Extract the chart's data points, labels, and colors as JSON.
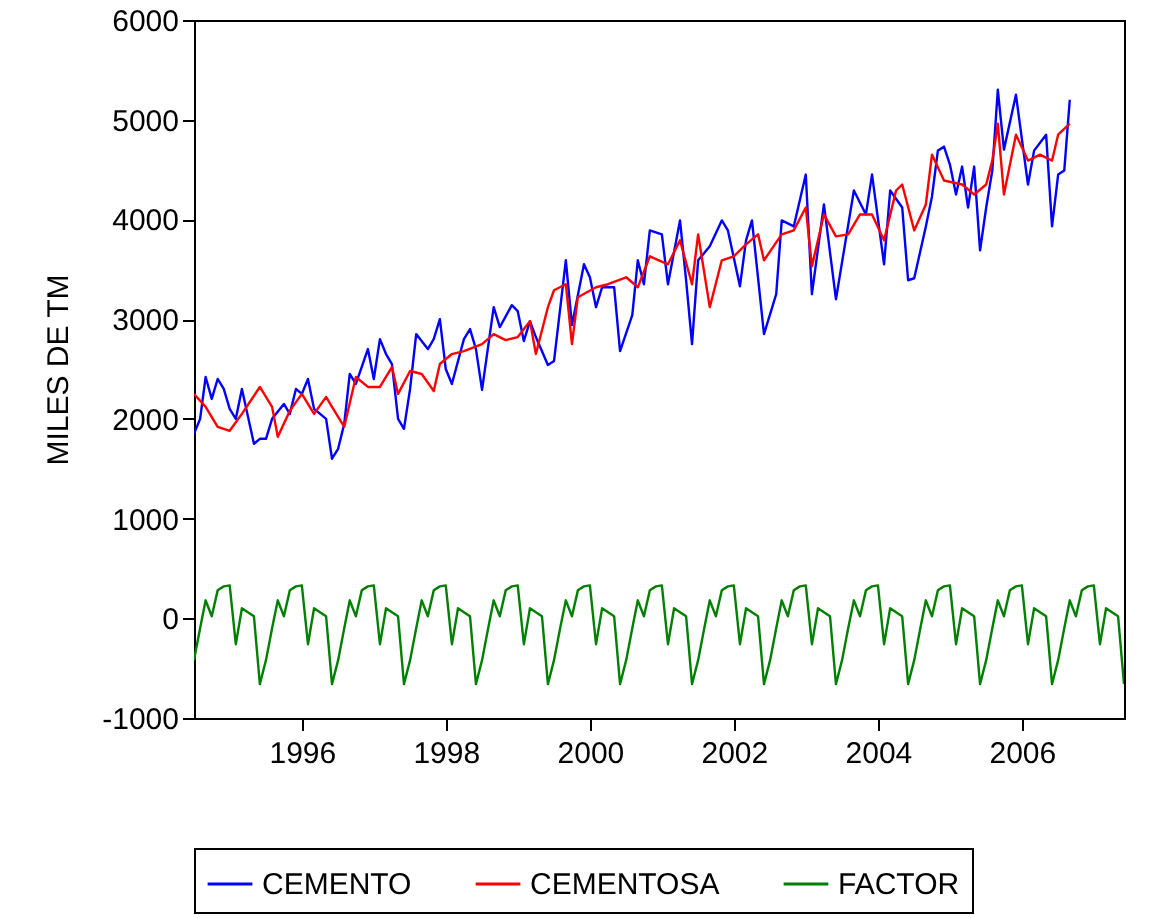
{
  "chart_data": {
    "type": "line",
    "ylabel": "MILES  DE  TM",
    "x": [
      "1995-01",
      "1995-02",
      "1995-03",
      "1995-04",
      "1995-05",
      "1995-06",
      "1995-07",
      "1995-08",
      "1995-09",
      "1995-10",
      "1995-11",
      "1995-12",
      "1996-01",
      "1996-02",
      "1996-03",
      "1996-04",
      "1996-05",
      "1996-06",
      "1996-07",
      "1996-08",
      "1996-09",
      "1996-10",
      "1996-11",
      "1996-12",
      "1997-01",
      "1997-02",
      "1997-03",
      "1997-04",
      "1997-05",
      "1997-06",
      "1997-07",
      "1997-08",
      "1997-09",
      "1997-10",
      "1997-11",
      "1997-12",
      "1998-01",
      "1998-02",
      "1998-03",
      "1998-04",
      "1998-05",
      "1998-06",
      "1998-07",
      "1998-08",
      "1998-09",
      "1998-10",
      "1998-11",
      "1998-12",
      "1999-01",
      "1999-02",
      "1999-03",
      "1999-04",
      "1999-05",
      "1999-06",
      "1999-07",
      "1999-08",
      "1999-09",
      "1999-10",
      "1999-11",
      "1999-12",
      "2000-01",
      "2000-02",
      "2000-03",
      "2000-04",
      "2000-05",
      "2000-06",
      "2000-07",
      "2000-08",
      "2000-09",
      "2000-10",
      "2000-11",
      "2000-12",
      "2001-01",
      "2001-02",
      "2001-03",
      "2001-04",
      "2001-05",
      "2001-06",
      "2001-07",
      "2001-08",
      "2001-09",
      "2001-10",
      "2001-11",
      "2001-12",
      "2002-01",
      "2002-02",
      "2002-03",
      "2002-04",
      "2002-05",
      "2002-06",
      "2002-07",
      "2002-08",
      "2002-09",
      "2002-10",
      "2002-11",
      "2002-12",
      "2003-01",
      "2003-02",
      "2003-03",
      "2003-04",
      "2003-05",
      "2003-06",
      "2003-07",
      "2003-08",
      "2003-09",
      "2003-10",
      "2003-11",
      "2003-12",
      "2004-01",
      "2004-02",
      "2004-03",
      "2004-04",
      "2004-05",
      "2004-06",
      "2004-07",
      "2004-08",
      "2004-09",
      "2004-10",
      "2004-11",
      "2004-12",
      "2005-01",
      "2005-02",
      "2005-03",
      "2005-04",
      "2005-05",
      "2005-06",
      "2005-07",
      "2005-08",
      "2005-09",
      "2005-10",
      "2005-11",
      "2005-12",
      "2006-01",
      "2006-02",
      "2006-03",
      "2006-04",
      "2006-05",
      "2006-06",
      "2006-07",
      "2006-08",
      "2006-09",
      "2006-10",
      "2006-11",
      "2006-12",
      "2007-01",
      "2007-02",
      "2007-03",
      "2007-04",
      "2007-05",
      "2007-06",
      "2007-07",
      "2007-08",
      "2007-09",
      "2007-10",
      "2007-11",
      "2007-12"
    ],
    "series": [
      {
        "name": "CEMENTO",
        "color": "#0000ff",
        "x": [
          "1995-01",
          "1995-02",
          "1995-03",
          "1995-04",
          "1995-05",
          "1995-06",
          "1995-07",
          "1995-08",
          "1995-09",
          "1995-11",
          "1995-12",
          "1996-01",
          "1996-02",
          "1996-04",
          "1996-05",
          "1996-06",
          "1996-07",
          "1996-08",
          "1996-09",
          "1996-11",
          "1996-12",
          "1997-01",
          "1997-02",
          "1997-03",
          "1997-04",
          "1997-06",
          "1997-07",
          "1997-08",
          "1997-09",
          "1997-10",
          "1997-11",
          "1997-12",
          "1998-01",
          "1998-02",
          "1998-04",
          "1998-05",
          "1998-06",
          "1998-07",
          "1998-08",
          "1998-10",
          "1998-11",
          "1998-12",
          "1999-01",
          "1999-03",
          "1999-04",
          "1999-06",
          "1999-07",
          "1999-08",
          "1999-09",
          "1999-10",
          "1999-12",
          "2000-01",
          "2000-03",
          "2000-04",
          "2000-06",
          "2000-07",
          "2000-08",
          "2000-09",
          "2000-11",
          "2000-12",
          "2001-02",
          "2001-03",
          "2001-04",
          "2001-05",
          "2001-07",
          "2001-08",
          "2001-10",
          "2001-11",
          "2001-12",
          "2002-01",
          "2002-03",
          "2002-05",
          "2002-06",
          "2002-08",
          "2002-09",
          "2002-10",
          "2002-12",
          "2003-02",
          "2003-03",
          "2003-05",
          "2003-07",
          "2003-08",
          "2003-10",
          "2003-12",
          "2004-03",
          "2004-05",
          "2004-06",
          "2004-08",
          "2004-09",
          "2004-11",
          "2004-12",
          "2005-01",
          "2005-03",
          "2005-04",
          "2005-05",
          "2005-06",
          "2005-07",
          "2005-08",
          "2005-09",
          "2005-10",
          "2005-11",
          "2005-12",
          "2006-01",
          "2006-02",
          "2006-03",
          "2006-04",
          "2006-06",
          "2006-08",
          "2006-09",
          "2006-11",
          "2006-12",
          "2007-01",
          "2007-02",
          "2007-03"
        ],
        "values": [
          1850,
          2000,
          2420,
          2200,
          2400,
          2300,
          2100,
          2000,
          2300,
          1750,
          1800,
          1800,
          2000,
          2150,
          2050,
          2300,
          2250,
          2400,
          2100,
          2000,
          1600,
          1700,
          1950,
          2450,
          2350,
          2700,
          2400,
          2800,
          2650,
          2550,
          2000,
          1900,
          2300,
          2850,
          2700,
          2800,
          3000,
          2500,
          2350,
          2800,
          2900,
          2700,
          2290,
          3120,
          2920,
          3140,
          3080,
          2780,
          2980,
          2820,
          2540,
          2580,
          3590,
          2940,
          3550,
          3420,
          3120,
          3320,
          3320,
          2680,
          3040,
          3590,
          3350,
          3890,
          3850,
          3350,
          3990,
          3390,
          2750,
          3590,
          3730,
          3990,
          3890,
          3330,
          3790,
          3990,
          2850,
          3250,
          3990,
          3930,
          4450,
          3250,
          4150,
          3200,
          4290,
          4050,
          4450,
          3550,
          4290,
          4120,
          3390,
          3410,
          3930,
          4230,
          4690,
          4730,
          4550,
          4250,
          4530,
          4120,
          4530,
          3690,
          4120,
          4490,
          5300,
          4700,
          5250,
          4350,
          4690,
          4850,
          3930,
          4450,
          4490,
          5200
        ]
      },
      {
        "name": "CEMENTOSA",
        "color": "#ff0000",
        "x": [
          "1995-01",
          "1995-03",
          "1995-05",
          "1995-07",
          "1995-09",
          "1995-12",
          "1996-02",
          "1996-03",
          "1996-05",
          "1996-07",
          "1996-09",
          "1996-11",
          "1996-12",
          "1997-02",
          "1997-04",
          "1997-06",
          "1997-08",
          "1997-10",
          "1997-11",
          "1998-01",
          "1998-03",
          "1998-05",
          "1998-06",
          "1998-08",
          "1998-10",
          "1999-01",
          "1999-03",
          "1999-05",
          "1999-07",
          "1999-09",
          "1999-10",
          "1999-12",
          "2000-01",
          "2000-03",
          "2000-04",
          "2000-05",
          "2000-08",
          "2000-10",
          "2001-01",
          "2001-03",
          "2001-05",
          "2001-08",
          "2001-10",
          "2001-12",
          "2002-01",
          "2002-03",
          "2002-05",
          "2002-07",
          "2002-09",
          "2002-11",
          "2002-12",
          "2003-03",
          "2003-05",
          "2003-07",
          "2003-08",
          "2003-10",
          "2003-12",
          "2004-02",
          "2004-04",
          "2004-06",
          "2004-08",
          "2004-10",
          "2004-11",
          "2005-01",
          "2005-03",
          "2005-04",
          "2005-06",
          "2005-09",
          "2005-11",
          "2006-01",
          "2006-02",
          "2006-03",
          "2006-04",
          "2006-06",
          "2006-08",
          "2006-10",
          "2006-12",
          "2007-01",
          "2007-03"
        ],
        "values": [
          2250,
          2120,
          1920,
          1880,
          2050,
          2320,
          2120,
          1820,
          2080,
          2250,
          2050,
          2220,
          2120,
          1920,
          2420,
          2320,
          2320,
          2520,
          2250,
          2480,
          2450,
          2280,
          2550,
          2650,
          2680,
          2750,
          2850,
          2790,
          2820,
          2980,
          2650,
          3120,
          3290,
          3350,
          2750,
          3220,
          3320,
          3350,
          3420,
          3320,
          3630,
          3550,
          3790,
          3350,
          3850,
          3120,
          3590,
          3630,
          3750,
          3850,
          3590,
          3850,
          3890,
          4120,
          3530,
          4050,
          3830,
          3850,
          4050,
          4050,
          3790,
          4290,
          4350,
          3890,
          4150,
          4650,
          4390,
          4350,
          4250,
          4350,
          4590,
          4960,
          4250,
          4850,
          4590,
          4650,
          4590,
          4850,
          4960
        ]
      },
      {
        "name": "FACTOR",
        "color": "#008000",
        "values": [
          -420,
          -100,
          180,
          20,
          280,
          320,
          330,
          -260,
          100,
          60,
          20,
          -660,
          -420,
          -100,
          180,
          20,
          280,
          320,
          330,
          -260,
          100,
          60,
          20,
          -660,
          -420,
          -100,
          180,
          20,
          280,
          320,
          330,
          -260,
          100,
          60,
          20,
          -660,
          -420,
          -100,
          180,
          20,
          280,
          320,
          330,
          -260,
          100,
          60,
          20,
          -660,
          -420,
          -100,
          180,
          20,
          280,
          320,
          330,
          -260,
          100,
          60,
          20,
          -660,
          -420,
          -100,
          180,
          20,
          280,
          320,
          330,
          -260,
          100,
          60,
          20,
          -660,
          -420,
          -100,
          180,
          20,
          280,
          320,
          330,
          -260,
          100,
          60,
          20,
          -660,
          -420,
          -100,
          180,
          20,
          280,
          320,
          330,
          -260,
          100,
          60,
          20,
          -660,
          -420,
          -100,
          180,
          20,
          280,
          320,
          330,
          -260,
          100,
          60,
          20,
          -660,
          -420,
          -100,
          180,
          20,
          280,
          320,
          330,
          -260,
          100,
          60,
          20,
          -660,
          -420,
          -100,
          180,
          20,
          280,
          320,
          330,
          -260,
          100,
          60,
          20,
          -660,
          -420,
          -100,
          180,
          20,
          280,
          320,
          330,
          -260,
          100,
          60,
          20,
          -660,
          -420,
          -100,
          180,
          20,
          280,
          320,
          330,
          -260,
          100,
          60,
          20,
          -660
        ]
      }
    ],
    "xlim": [
      "1995-01",
      "2007-12"
    ],
    "xticks": [
      {
        "value": "1996-07",
        "label": "1996"
      },
      {
        "value": "1998-07",
        "label": "1998"
      },
      {
        "value": "2000-07",
        "label": "2000"
      },
      {
        "value": "2002-07",
        "label": "2002"
      },
      {
        "value": "2004-07",
        "label": "2004"
      },
      {
        "value": "2006-07",
        "label": "2006"
      }
    ],
    "ylim": [
      -1000,
      6000
    ],
    "yticks": [
      -1000,
      0,
      1000,
      2000,
      3000,
      4000,
      5000,
      6000
    ],
    "grid": false,
    "legend": "bottom"
  }
}
